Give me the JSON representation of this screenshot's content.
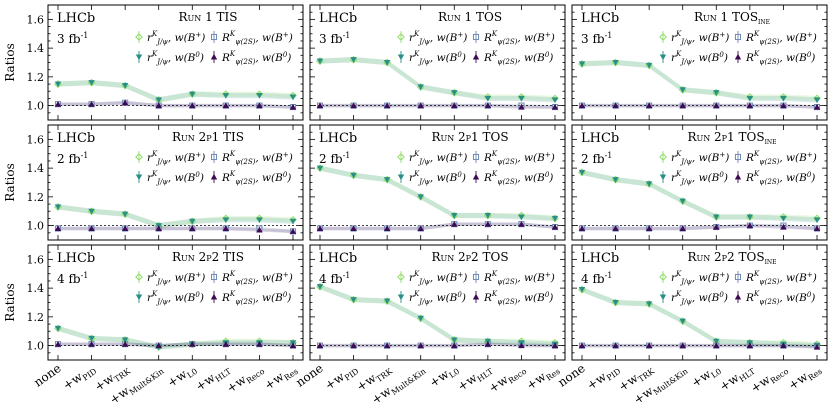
{
  "figure": {
    "ylabel": "Ratios",
    "experiment": "LHCb",
    "categories": [
      "none",
      "+wPID",
      "+wTRK",
      "+wMult&Kin",
      "+wL0",
      "+wHLT",
      "+wReco",
      "+wRes"
    ],
    "category_labels": [
      {
        "main": "none",
        "sub": ""
      },
      {
        "main": "+w",
        "sub": "PID"
      },
      {
        "main": "+w",
        "sub": "TRK"
      },
      {
        "main": "+w",
        "sub": "Mult&Kin"
      },
      {
        "main": "+w",
        "sub": "L0"
      },
      {
        "main": "+w",
        "sub": "HLT"
      },
      {
        "main": "+w",
        "sub": "Reco"
      },
      {
        "main": "+w",
        "sub": "Res"
      }
    ],
    "legend": [
      {
        "label": "r^K_{J/ψ}, w(B+)",
        "color": "#90dd6a",
        "marker": "diamond-open"
      },
      {
        "label": "R^K_{ψ(2S)}, w(B+)",
        "color": "#6f8ab3",
        "marker": "square-open"
      },
      {
        "label": "r^K_{J/ψ}, w(B0)",
        "color": "#2a8f86",
        "marker": "triangle-down"
      },
      {
        "label": "R^K_{ψ(2S)}, w(B0)",
        "color": "#3e0a55",
        "marker": "triangle-up"
      }
    ]
  },
  "chart_data": [
    {
      "type": "line",
      "title": "Run 1 TIS",
      "lumi": "3 fb-1",
      "ylabel": "Ratios",
      "ylim": [
        0.9,
        1.7
      ],
      "categories": [
        "none",
        "+wPID",
        "+wTRK",
        "+wMult&Kin",
        "+wL0",
        "+wHLT",
        "+wReco",
        "+wRes"
      ],
      "series": [
        {
          "name": "r^K_{J/ψ}, w(B+)",
          "values": [
            1.15,
            1.16,
            1.14,
            1.04,
            1.08,
            1.08,
            1.08,
            1.07
          ]
        },
        {
          "name": "R^K_{ψ(2S)}, w(B+)",
          "values": [
            1.01,
            1.01,
            1.02,
            1.0,
            1.0,
            1.0,
            1.0,
            0.99
          ]
        },
        {
          "name": "r^K_{J/ψ}, w(B0)",
          "values": [
            1.15,
            1.16,
            1.14,
            1.04,
            1.08,
            1.07,
            1.07,
            1.06
          ]
        },
        {
          "name": "R^K_{ψ(2S)}, w(B0)",
          "values": [
            1.01,
            1.01,
            1.02,
            1.0,
            1.0,
            1.0,
            1.0,
            0.99
          ]
        }
      ]
    },
    {
      "type": "line",
      "title": "Run 1 TOS",
      "lumi": "3 fb-1",
      "ylabel": "Ratios",
      "ylim": [
        0.9,
        1.7
      ],
      "categories": [
        "none",
        "+wPID",
        "+wTRK",
        "+wMult&Kin",
        "+wL0",
        "+wHLT",
        "+wReco",
        "+wRes"
      ],
      "series": [
        {
          "name": "r^K_{J/ψ}, w(B+)",
          "values": [
            1.31,
            1.32,
            1.3,
            1.13,
            1.09,
            1.06,
            1.06,
            1.05
          ]
        },
        {
          "name": "R^K_{ψ(2S)}, w(B+)",
          "values": [
            1.0,
            1.0,
            1.0,
            1.0,
            1.0,
            1.0,
            1.0,
            0.99
          ]
        },
        {
          "name": "r^K_{J/ψ}, w(B0)",
          "values": [
            1.31,
            1.32,
            1.3,
            1.13,
            1.09,
            1.05,
            1.05,
            1.04
          ]
        },
        {
          "name": "R^K_{ψ(2S)}, w(B0)",
          "values": [
            1.0,
            1.0,
            1.0,
            1.0,
            1.0,
            1.0,
            0.99,
            0.99
          ]
        }
      ]
    },
    {
      "type": "line",
      "title": "Run 1 TOSine",
      "lumi": "3 fb-1",
      "ylabel": "Ratios",
      "ylim": [
        0.9,
        1.7
      ],
      "categories": [
        "none",
        "+wPID",
        "+wTRK",
        "+wMult&Kin",
        "+wL0",
        "+wHLT",
        "+wReco",
        "+wRes"
      ],
      "series": [
        {
          "name": "r^K_{J/ψ}, w(B+)",
          "values": [
            1.29,
            1.3,
            1.28,
            1.11,
            1.09,
            1.06,
            1.06,
            1.05
          ]
        },
        {
          "name": "R^K_{ψ(2S)}, w(B+)",
          "values": [
            1.0,
            1.0,
            1.0,
            1.0,
            1.0,
            1.0,
            1.0,
            0.99
          ]
        },
        {
          "name": "r^K_{J/ψ}, w(B0)",
          "values": [
            1.29,
            1.3,
            1.28,
            1.11,
            1.09,
            1.05,
            1.05,
            1.04
          ]
        },
        {
          "name": "R^K_{ψ(2S)}, w(B0)",
          "values": [
            1.0,
            1.0,
            1.0,
            1.0,
            1.0,
            1.0,
            1.0,
            0.99
          ]
        }
      ]
    },
    {
      "type": "line",
      "title": "Run 2p1 TIS",
      "lumi": "2 fb-1",
      "ylabel": "Ratios",
      "ylim": [
        0.9,
        1.7
      ],
      "categories": [
        "none",
        "+wPID",
        "+wTRK",
        "+wMult&Kin",
        "+wL0",
        "+wHLT",
        "+wReco",
        "+wRes"
      ],
      "series": [
        {
          "name": "r^K_{J/ψ}, w(B+)",
          "values": [
            1.13,
            1.1,
            1.08,
            1.0,
            1.03,
            1.05,
            1.05,
            1.04
          ]
        },
        {
          "name": "R^K_{ψ(2S)}, w(B+)",
          "values": [
            0.98,
            0.98,
            0.98,
            0.98,
            0.98,
            0.98,
            0.98,
            0.96
          ]
        },
        {
          "name": "r^K_{J/ψ}, w(B0)",
          "values": [
            1.13,
            1.1,
            1.08,
            1.0,
            1.03,
            1.04,
            1.04,
            1.03
          ]
        },
        {
          "name": "R^K_{ψ(2S)}, w(B0)",
          "values": [
            0.98,
            0.98,
            0.98,
            0.98,
            0.98,
            0.98,
            0.97,
            0.96
          ]
        }
      ]
    },
    {
      "type": "line",
      "title": "Run 2p1 TOS",
      "lumi": "2 fb-1",
      "ylabel": "Ratios",
      "ylim": [
        0.9,
        1.7
      ],
      "categories": [
        "none",
        "+wPID",
        "+wTRK",
        "+wMult&Kin",
        "+wL0",
        "+wHLT",
        "+wReco",
        "+wRes"
      ],
      "series": [
        {
          "name": "r^K_{J/ψ}, w(B+)",
          "values": [
            1.4,
            1.35,
            1.32,
            1.2,
            1.07,
            1.07,
            1.07,
            1.05
          ]
        },
        {
          "name": "R^K_{ψ(2S)}, w(B+)",
          "values": [
            0.98,
            0.98,
            0.98,
            0.98,
            1.01,
            1.01,
            1.01,
            0.99
          ]
        },
        {
          "name": "r^K_{J/ψ}, w(B0)",
          "values": [
            1.4,
            1.35,
            1.32,
            1.2,
            1.07,
            1.07,
            1.06,
            1.05
          ]
        },
        {
          "name": "R^K_{ψ(2S)}, w(B0)",
          "values": [
            0.98,
            0.98,
            0.98,
            0.98,
            1.01,
            1.01,
            1.01,
            0.99
          ]
        }
      ]
    },
    {
      "type": "line",
      "title": "Run 2p1 TOSine",
      "lumi": "2 fb-1",
      "ylabel": "Ratios",
      "ylim": [
        0.9,
        1.7
      ],
      "categories": [
        "none",
        "+wPID",
        "+wTRK",
        "+wMult&Kin",
        "+wL0",
        "+wHLT",
        "+wReco",
        "+wRes"
      ],
      "series": [
        {
          "name": "r^K_{J/ψ}, w(B+)",
          "values": [
            1.37,
            1.32,
            1.29,
            1.17,
            1.06,
            1.06,
            1.06,
            1.05
          ]
        },
        {
          "name": "R^K_{ψ(2S)}, w(B+)",
          "values": [
            0.98,
            0.98,
            0.98,
            0.98,
            0.99,
            1.0,
            1.0,
            0.98
          ]
        },
        {
          "name": "r^K_{J/ψ}, w(B0)",
          "values": [
            1.37,
            1.32,
            1.29,
            1.17,
            1.06,
            1.06,
            1.05,
            1.04
          ]
        },
        {
          "name": "R^K_{ψ(2S)}, w(B0)",
          "values": [
            0.98,
            0.98,
            0.98,
            0.98,
            0.99,
            1.0,
            0.99,
            0.98
          ]
        }
      ]
    },
    {
      "type": "line",
      "title": "Run 2p2 TIS",
      "lumi": "4 fb-1",
      "ylabel": "Ratios",
      "ylim": [
        0.9,
        1.7
      ],
      "categories": [
        "none",
        "+wPID",
        "+wTRK",
        "+wMult&Kin",
        "+wL0",
        "+wHLT",
        "+wReco",
        "+wRes"
      ],
      "series": [
        {
          "name": "r^K_{J/ψ}, w(B+)",
          "values": [
            1.12,
            1.05,
            1.04,
            0.99,
            1.01,
            1.03,
            1.03,
            1.02
          ]
        },
        {
          "name": "R^K_{ψ(2S)}, w(B+)",
          "values": [
            1.01,
            1.01,
            1.01,
            1.0,
            1.01,
            1.01,
            1.01,
            1.0
          ]
        },
        {
          "name": "r^K_{J/ψ}, w(B0)",
          "values": [
            1.12,
            1.05,
            1.04,
            0.99,
            1.01,
            1.02,
            1.02,
            1.02
          ]
        },
        {
          "name": "R^K_{ψ(2S)}, w(B0)",
          "values": [
            1.01,
            1.01,
            1.01,
            1.0,
            1.01,
            1.01,
            1.01,
            1.0
          ]
        }
      ]
    },
    {
      "type": "line",
      "title": "Run 2p2 TOS",
      "lumi": "4 fb-1",
      "ylabel": "Ratios",
      "ylim": [
        0.9,
        1.7
      ],
      "categories": [
        "none",
        "+wPID",
        "+wTRK",
        "+wMult&Kin",
        "+wL0",
        "+wHLT",
        "+wReco",
        "+wRes"
      ],
      "series": [
        {
          "name": "r^K_{J/ψ}, w(B+)",
          "values": [
            1.41,
            1.32,
            1.31,
            1.19,
            1.04,
            1.03,
            1.03,
            1.02
          ]
        },
        {
          "name": "R^K_{ψ(2S)}, w(B+)",
          "values": [
            1.0,
            1.0,
            1.0,
            1.0,
            1.0,
            1.01,
            1.01,
            1.0
          ]
        },
        {
          "name": "r^K_{J/ψ}, w(B0)",
          "values": [
            1.41,
            1.32,
            1.31,
            1.19,
            1.04,
            1.03,
            1.02,
            1.01
          ]
        },
        {
          "name": "R^K_{ψ(2S)}, w(B0)",
          "values": [
            1.0,
            1.0,
            1.0,
            1.0,
            1.0,
            1.01,
            1.0,
            1.0
          ]
        }
      ]
    },
    {
      "type": "line",
      "title": "Run 2p2 TOSine",
      "lumi": "4 fb-1",
      "ylabel": "Ratios",
      "ylim": [
        0.9,
        1.7
      ],
      "categories": [
        "none",
        "+wPID",
        "+wTRK",
        "+wMult&Kin",
        "+wL0",
        "+wHLT",
        "+wReco",
        "+wRes"
      ],
      "series": [
        {
          "name": "r^K_{J/ψ}, w(B+)",
          "values": [
            1.39,
            1.3,
            1.29,
            1.17,
            1.03,
            1.02,
            1.02,
            1.01
          ]
        },
        {
          "name": "R^K_{ψ(2S)}, w(B+)",
          "values": [
            1.0,
            1.0,
            1.0,
            1.0,
            1.0,
            1.0,
            1.0,
            1.0
          ]
        },
        {
          "name": "r^K_{J/ψ}, w(B0)",
          "values": [
            1.39,
            1.3,
            1.29,
            1.17,
            1.03,
            1.02,
            1.01,
            1.0
          ]
        },
        {
          "name": "R^K_{ψ(2S)}, w(B0)",
          "values": [
            1.0,
            1.0,
            1.0,
            1.0,
            1.0,
            1.0,
            1.0,
            0.99
          ]
        }
      ]
    }
  ]
}
